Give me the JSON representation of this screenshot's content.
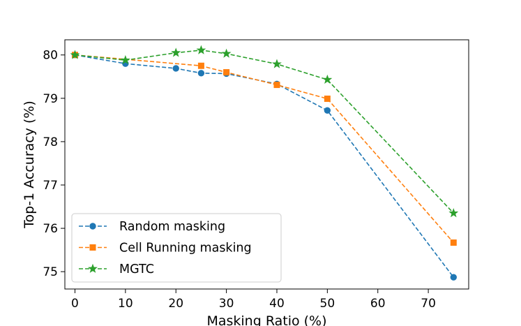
{
  "chart_data": {
    "type": "line",
    "title": "",
    "xlabel": "Masking Ratio (%)",
    "ylabel": "Top-1 Accuracy (%)",
    "xlim": [
      -2,
      78
    ],
    "ylim": [
      74.6,
      80.35
    ],
    "xticks": [
      0,
      10,
      20,
      30,
      40,
      50,
      60,
      70
    ],
    "yticks": [
      75,
      76,
      77,
      78,
      79,
      80
    ],
    "grid": false,
    "legend_position": "lower-left",
    "series": [
      {
        "name": "Random masking",
        "color": "#1f77b4",
        "marker": "circle",
        "x": [
          0,
          10,
          20,
          25,
          30,
          40,
          50,
          75
        ],
        "y": [
          80.0,
          79.8,
          79.69,
          79.58,
          79.57,
          79.33,
          78.72,
          74.87
        ]
      },
      {
        "name": "Cell Running masking",
        "color": "#ff7f0e",
        "marker": "square",
        "x": [
          0,
          25,
          30,
          40,
          50,
          75
        ],
        "y": [
          80.0,
          79.75,
          79.6,
          79.31,
          78.99,
          75.67
        ]
      },
      {
        "name": "MGTC",
        "color": "#2ca02c",
        "marker": "star",
        "x": [
          0,
          10,
          20,
          25,
          30,
          40,
          50,
          75
        ],
        "y": [
          80.0,
          79.88,
          80.05,
          80.11,
          80.03,
          79.79,
          79.43,
          76.35
        ]
      }
    ]
  }
}
